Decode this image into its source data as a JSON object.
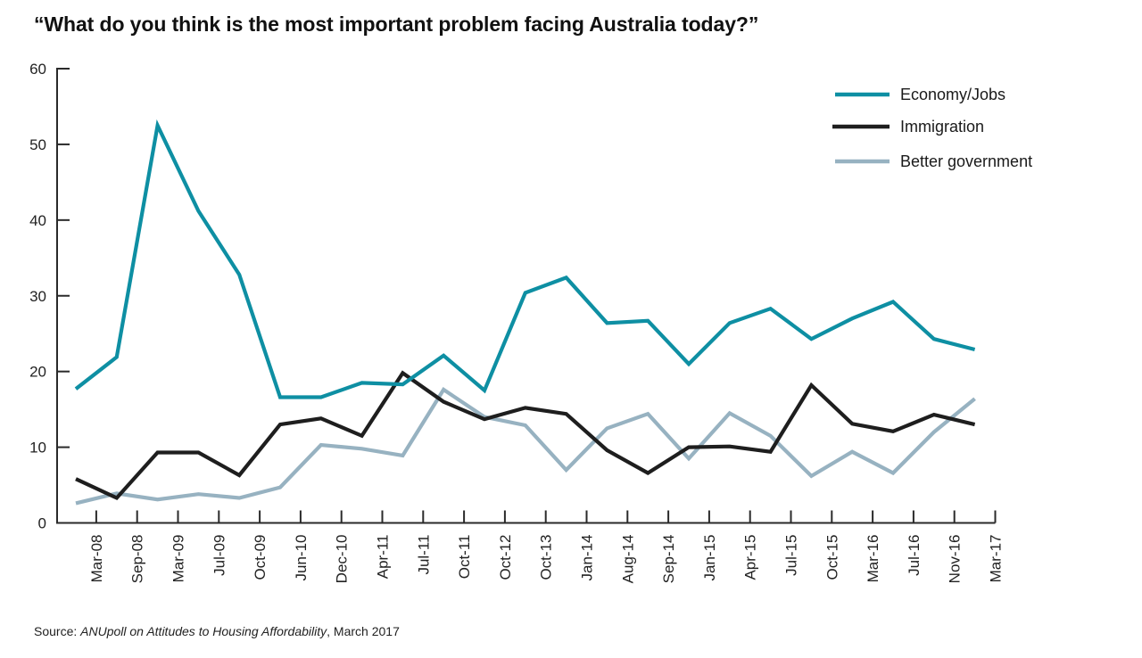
{
  "chart_data": {
    "type": "line",
    "title": "“What do you think is the most important problem facing Australia today?”",
    "xlabel": "",
    "ylabel": "",
    "ylim": [
      0,
      60
    ],
    "yticks": [
      0,
      10,
      20,
      30,
      40,
      50,
      60
    ],
    "grid": false,
    "legend_position": "top-right",
    "categories": [
      "Mar-08",
      "Sep-08",
      "Mar-09",
      "Jul-09",
      "Oct-09",
      "Jun-10",
      "Dec-10",
      "Apr-11",
      "Jul-11",
      "Oct-11",
      "Oct-12",
      "Oct-13",
      "Jan-14",
      "Aug-14",
      "Sep-14",
      "Jan-15",
      "Apr-15",
      "Jul-15",
      "Oct-15",
      "Mar-16",
      "Jul-16",
      "Nov-16",
      "Mar-17"
    ],
    "series": [
      {
        "name": "Economy/Jobs",
        "color": "#0E8FA3",
        "values": [
          17.7,
          21.9,
          52.5,
          41.2,
          32.8,
          16.6,
          16.6,
          18.5,
          18.3,
          22.1,
          17.5,
          30.4,
          32.4,
          26.4,
          26.7,
          21.0,
          26.4,
          28.3,
          24.3,
          27.0,
          29.2,
          24.3,
          22.9
        ]
      },
      {
        "name": "Immigration",
        "color": "#1E1E1E",
        "values": [
          5.8,
          3.3,
          9.3,
          9.3,
          6.3,
          13.0,
          13.8,
          11.5,
          19.8,
          16.0,
          13.7,
          15.2,
          14.4,
          9.6,
          6.6,
          10.0,
          10.1,
          9.4,
          18.2,
          13.1,
          12.1,
          14.3,
          13.0
        ]
      },
      {
        "name": "Better government",
        "color": "#97B2C1",
        "values": [
          2.6,
          3.9,
          3.1,
          3.8,
          3.3,
          4.7,
          10.3,
          9.8,
          8.9,
          17.6,
          14.0,
          12.9,
          7.0,
          12.5,
          14.4,
          8.5,
          14.5,
          11.5,
          6.2,
          9.4,
          6.6,
          12.0,
          16.4
        ]
      }
    ]
  },
  "source": {
    "prefix": "Source: ",
    "publication": "ANUpoll on Attitudes to Housing Affordability",
    "suffix": ", March 2017"
  }
}
